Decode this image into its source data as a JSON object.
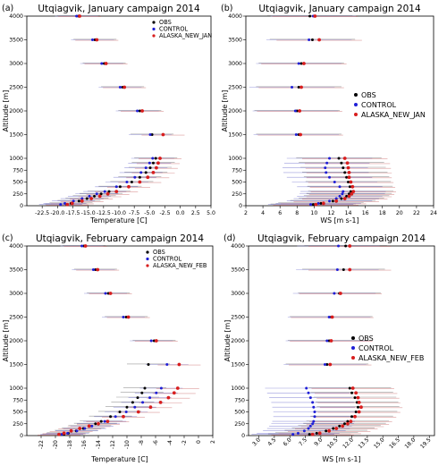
{
  "colors": {
    "obs": "#000000",
    "control": "#1f1fd6",
    "alaska": "#d81e1e",
    "err_obs": "#888888",
    "err_control": "#8a8ad8",
    "err_alaska": "#d88a8a"
  },
  "chart_data": [
    {
      "type": "scatter",
      "panel_label": "(a)",
      "title": "Utqiagvik, January campaign 2014",
      "xlabel": "Temperature [C]",
      "ylabel": "Altitude [m]",
      "xlim": [
        -25,
        5
      ],
      "ylim": [
        0,
        4000
      ],
      "xticks": [
        "-22.5",
        "-20.0",
        "-17.5",
        "-15.0",
        "-12.5",
        "-10.0",
        "-7.5",
        "-5.0",
        "-2.5",
        "0.0",
        "2.5",
        "5.0"
      ],
      "yticks": [
        "0",
        "250",
        "500",
        "750",
        "1000",
        "1500",
        "2000",
        "2500",
        "3000",
        "3500",
        "4000"
      ],
      "legend_position": "top-right",
      "err_halfwidth": 3.5,
      "series": [
        {
          "name": "OBS",
          "altitudes": [
            4000,
            3500,
            3000,
            2500,
            2000,
            1500,
            1000,
            900,
            800,
            700,
            600,
            500,
            400,
            300,
            250,
            200,
            150,
            100,
            50,
            25
          ],
          "values": [
            -16.6,
            -13.9,
            -12.4,
            -9.4,
            -6.6,
            -4.6,
            -4.0,
            -4.4,
            -4.9,
            -5.6,
            -6.6,
            -7.9,
            -9.8,
            -11.6,
            -12.9,
            -14.0,
            -15.2,
            -16.5,
            -17.8,
            -18.5
          ]
        },
        {
          "name": "CONTROL",
          "altitudes": [
            4000,
            3500,
            3000,
            2500,
            2000,
            1500,
            1000,
            900,
            800,
            700,
            600,
            500,
            400,
            300,
            250,
            200,
            150,
            100,
            50,
            25
          ],
          "values": [
            -16.9,
            -14.3,
            -12.8,
            -9.8,
            -7.0,
            -4.9,
            -4.5,
            -5.0,
            -5.6,
            -6.4,
            -7.4,
            -8.7,
            -10.4,
            -12.3,
            -13.6,
            -14.8,
            -16.0,
            -17.4,
            -18.8,
            -19.5
          ]
        },
        {
          "name": "ALASKA_NEW_JAN",
          "altitudes": [
            4000,
            3500,
            3000,
            2500,
            2000,
            1500,
            1000,
            900,
            800,
            700,
            600,
            500,
            400,
            300,
            250,
            200,
            150,
            100,
            50,
            25
          ],
          "values": [
            -16.4,
            -13.6,
            -12.1,
            -9.1,
            -6.2,
            -2.8,
            -3.3,
            -3.6,
            -3.9,
            -4.4,
            -5.3,
            -6.6,
            -8.4,
            -10.4,
            -11.8,
            -13.1,
            -14.5,
            -16.0,
            -17.6,
            -18.4
          ]
        }
      ]
    },
    {
      "type": "scatter",
      "panel_label": "(b)",
      "title": "Utqiagvik, January campaign 2014",
      "xlabel": "WS [m  s-1]",
      "ylabel": "Altitude [m]",
      "xlim": [
        2,
        24
      ],
      "ylim": [
        0,
        4000
      ],
      "xticks": [
        "2",
        "4",
        "6",
        "8",
        "10",
        "12",
        "14",
        "16",
        "18",
        "20",
        "22",
        "24"
      ],
      "yticks": [
        "0",
        "250",
        "500",
        "750",
        "1000",
        "1500",
        "2000",
        "2500",
        "3000",
        "3500",
        "4000"
      ],
      "legend_position": "top-right",
      "err_halfwidth": 5,
      "series": [
        {
          "name": "OBS",
          "altitudes": [
            4000,
            3500,
            3000,
            2500,
            2000,
            1500,
            1000,
            900,
            800,
            700,
            600,
            500,
            400,
            300,
            250,
            200,
            150,
            100,
            50,
            25
          ],
          "values": [
            9.5,
            9.8,
            8.5,
            8.2,
            8.0,
            8.2,
            12.9,
            13.2,
            13.4,
            13.6,
            13.8,
            14.0,
            14.2,
            14.3,
            14.1,
            13.8,
            13.2,
            12.2,
            10.8,
            9.9
          ]
        },
        {
          "name": "CONTROL",
          "altitudes": [
            4000,
            3500,
            3000,
            2500,
            2000,
            1500,
            1000,
            900,
            800,
            700,
            600,
            500,
            400,
            300,
            250,
            200,
            150,
            100,
            50,
            25
          ],
          "values": [
            9.9,
            9.4,
            8.2,
            7.4,
            7.8,
            7.9,
            11.8,
            11.5,
            11.3,
            11.4,
            11.8,
            12.4,
            13.0,
            13.4,
            13.3,
            13.0,
            12.6,
            11.8,
            10.5,
            9.6
          ]
        },
        {
          "name": "ALASKA_NEW_JAN",
          "altitudes": [
            4000,
            3500,
            3000,
            2500,
            2000,
            1500,
            1000,
            900,
            800,
            700,
            600,
            500,
            400,
            300,
            250,
            200,
            150,
            100,
            50,
            25
          ],
          "values": [
            10.1,
            10.6,
            8.8,
            8.5,
            8.3,
            8.4,
            13.6,
            13.9,
            14.0,
            14.1,
            14.1,
            14.3,
            14.5,
            14.6,
            14.4,
            14.1,
            13.6,
            12.6,
            11.1,
            10.2
          ]
        }
      ]
    },
    {
      "type": "scatter",
      "panel_label": "(c)",
      "title": "Utqiagvik, February campaign 2014",
      "xlabel": "Temperature [C]",
      "ylabel": "Altitude [m]",
      "xlim": [
        -24,
        2
      ],
      "ylim": [
        0,
        4000
      ],
      "xticks": [
        "-22",
        "-20",
        "-18",
        "-16",
        "-14",
        "-12",
        "-10",
        "-8",
        "-6",
        "-4",
        "-2",
        "0",
        "2"
      ],
      "yticks": [
        "0",
        "250",
        "500",
        "750",
        "1000",
        "1500",
        "2000",
        "2500",
        "3000",
        "3500",
        "4000"
      ],
      "legend_position": "top-right",
      "err_halfwidth": 3,
      "series": [
        {
          "name": "OBS",
          "altitudes": [
            4000,
            3500,
            3000,
            2500,
            2000,
            1500,
            1000,
            900,
            800,
            700,
            600,
            500,
            400,
            300,
            250,
            200,
            150,
            100,
            50,
            25
          ],
          "values": [
            -16.0,
            -14.4,
            -12.6,
            -10.1,
            -6.2,
            -7.0,
            -7.5,
            -7.9,
            -8.5,
            -9.2,
            -10.0,
            -11.0,
            -12.3,
            -13.6,
            -14.4,
            -15.2,
            -16.1,
            -17.1,
            -18.2,
            -18.8
          ]
        },
        {
          "name": "CONTROL",
          "altitudes": [
            4000,
            3500,
            3000,
            2500,
            2000,
            1500,
            1000,
            900,
            800,
            700,
            600,
            500,
            400,
            300,
            250,
            200,
            150,
            100,
            50,
            25
          ],
          "values": [
            -16.3,
            -14.7,
            -13.0,
            -10.5,
            -6.6,
            -4.4,
            -5.2,
            -5.9,
            -6.8,
            -7.8,
            -8.9,
            -10.1,
            -11.6,
            -13.1,
            -14.0,
            -14.9,
            -15.9,
            -17.0,
            -18.3,
            -19.1
          ]
        },
        {
          "name": "ALASKA_NEW_FEB",
          "altitudes": [
            4000,
            3500,
            3000,
            2500,
            2000,
            1500,
            1000,
            900,
            800,
            700,
            600,
            500,
            400,
            300,
            250,
            200,
            150,
            100,
            50,
            25
          ],
          "values": [
            -15.8,
            -14.1,
            -12.3,
            -9.8,
            -5.9,
            -2.7,
            -2.9,
            -3.4,
            -4.2,
            -5.3,
            -6.7,
            -8.4,
            -10.5,
            -12.7,
            -14.0,
            -15.3,
            -16.6,
            -17.8,
            -18.8,
            -19.5
          ]
        }
      ]
    },
    {
      "type": "scatter",
      "panel_label": "(d)",
      "title": "Utqiagvik, February campaign 2014",
      "xlabel": "WS [m  s-1]",
      "ylabel": "Altitude [m]",
      "xlim": [
        2,
        20
      ],
      "ylim": [
        0,
        4000
      ],
      "xticks": [
        "3.0",
        "4.5",
        "6.0",
        "7.5",
        "9.0",
        "10.5",
        "12.0",
        "13.5",
        "15.0",
        "16.5",
        "18.0",
        "19.5"
      ],
      "yticks": [
        "0",
        "250",
        "500",
        "750",
        "1000",
        "1500",
        "2000",
        "2500",
        "3000",
        "3500",
        "4000"
      ],
      "legend_position": "right",
      "err_halfwidth": 4,
      "series": [
        {
          "name": "OBS",
          "altitudes": [
            4000,
            3500,
            3000,
            2500,
            2000,
            1500,
            1000,
            900,
            800,
            700,
            600,
            500,
            400,
            300,
            250,
            200,
            150,
            100,
            50,
            25
          ],
          "values": [
            11.4,
            11.2,
            10.8,
            10.0,
            9.8,
            9.6,
            11.8,
            12.0,
            12.3,
            12.5,
            12.6,
            12.4,
            12.0,
            11.6,
            11.3,
            10.8,
            10.2,
            9.5,
            8.6,
            7.9
          ]
        },
        {
          "name": "CONTROL",
          "altitudes": [
            4000,
            3500,
            3000,
            2500,
            2000,
            1500,
            1000,
            900,
            800,
            700,
            600,
            500,
            400,
            300,
            250,
            200,
            150,
            100,
            50,
            25
          ],
          "values": [
            10.7,
            10.6,
            10.3,
            9.8,
            9.6,
            9.4,
            7.6,
            7.8,
            8.0,
            8.2,
            8.3,
            8.4,
            8.4,
            8.3,
            8.2,
            8.0,
            7.8,
            7.4,
            6.8,
            6.3
          ]
        },
        {
          "name": "ALASKA_NEW_FEB",
          "altitudes": [
            4000,
            3500,
            3000,
            2500,
            2000,
            1500,
            1000,
            900,
            800,
            700,
            600,
            500,
            400,
            300,
            250,
            200,
            150,
            100,
            50,
            25
          ],
          "values": [
            11.8,
            11.8,
            10.9,
            10.1,
            10.0,
            9.9,
            12.1,
            12.4,
            12.6,
            12.7,
            12.9,
            12.7,
            12.3,
            11.9,
            11.6,
            11.1,
            10.5,
            9.8,
            8.9,
            8.2
          ]
        }
      ]
    }
  ]
}
